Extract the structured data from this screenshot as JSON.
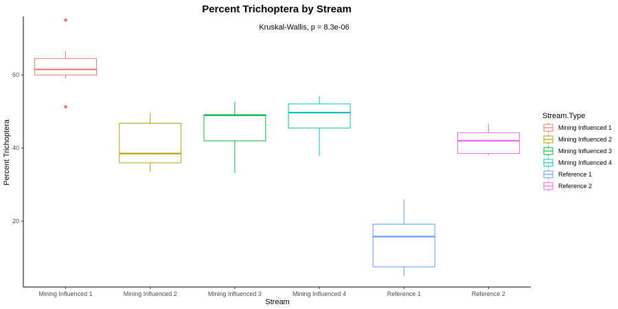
{
  "chart_data": {
    "type": "box",
    "title": "Percent Trichoptera by Stream",
    "annotation": "Kruskal-Wallis, p = 8.3e-06",
    "xlabel": "Stream",
    "ylabel": "Percent Trichoptera",
    "ylim": [
      2,
      76
    ],
    "yticks": [
      20,
      40,
      60
    ],
    "grid": false,
    "legend": {
      "title": "Stream.Type",
      "placement": "right",
      "entries": [
        "Mining Influenced 1",
        "Mining Influenced 2",
        "Mining Influenced 3",
        "Mining Influenced 4",
        "Reference 1",
        "Reference 2"
      ]
    },
    "categories": [
      "Mining Influenced 1",
      "Mining Influenced 2",
      "Mining Influenced 3",
      "Mining Influenced 4",
      "Reference 1",
      "Reference 2"
    ],
    "boxes": [
      {
        "category": "Mining Influenced 1",
        "color": "#F8766D",
        "whisker_low": 59.0,
        "q1": 60.0,
        "median": 61.5,
        "q3": 64.5,
        "whisker_high": 66.5,
        "outliers": [
          51.3,
          75.0
        ]
      },
      {
        "category": "Mining Influenced 2",
        "color": "#B79F00",
        "whisker_low": 33.5,
        "q1": 36.0,
        "median": 38.5,
        "q3": 46.8,
        "whisker_high": 49.5,
        "outliers": []
      },
      {
        "category": "Mining Influenced 3",
        "color": "#00BA38",
        "whisker_low": 33.2,
        "q1": 42.0,
        "median": 49.0,
        "q3": 49.1,
        "whisker_high": 52.7,
        "outliers": []
      },
      {
        "category": "Mining Influenced 4",
        "color": "#00BFC4",
        "whisker_low": 37.8,
        "q1": 45.5,
        "median": 49.7,
        "q3": 52.1,
        "whisker_high": 54.2,
        "outliers": []
      },
      {
        "category": "Reference 1",
        "color": "#619CFF",
        "whisker_low": 5.0,
        "q1": 7.5,
        "median": 15.8,
        "q3": 19.2,
        "whisker_high": 26.0,
        "outliers": []
      },
      {
        "category": "Reference 2",
        "color": "#F564E3",
        "whisker_low": 38.0,
        "q1": 38.5,
        "median": 42.0,
        "q3": 44.2,
        "whisker_high": 46.7,
        "outliers": []
      }
    ]
  }
}
